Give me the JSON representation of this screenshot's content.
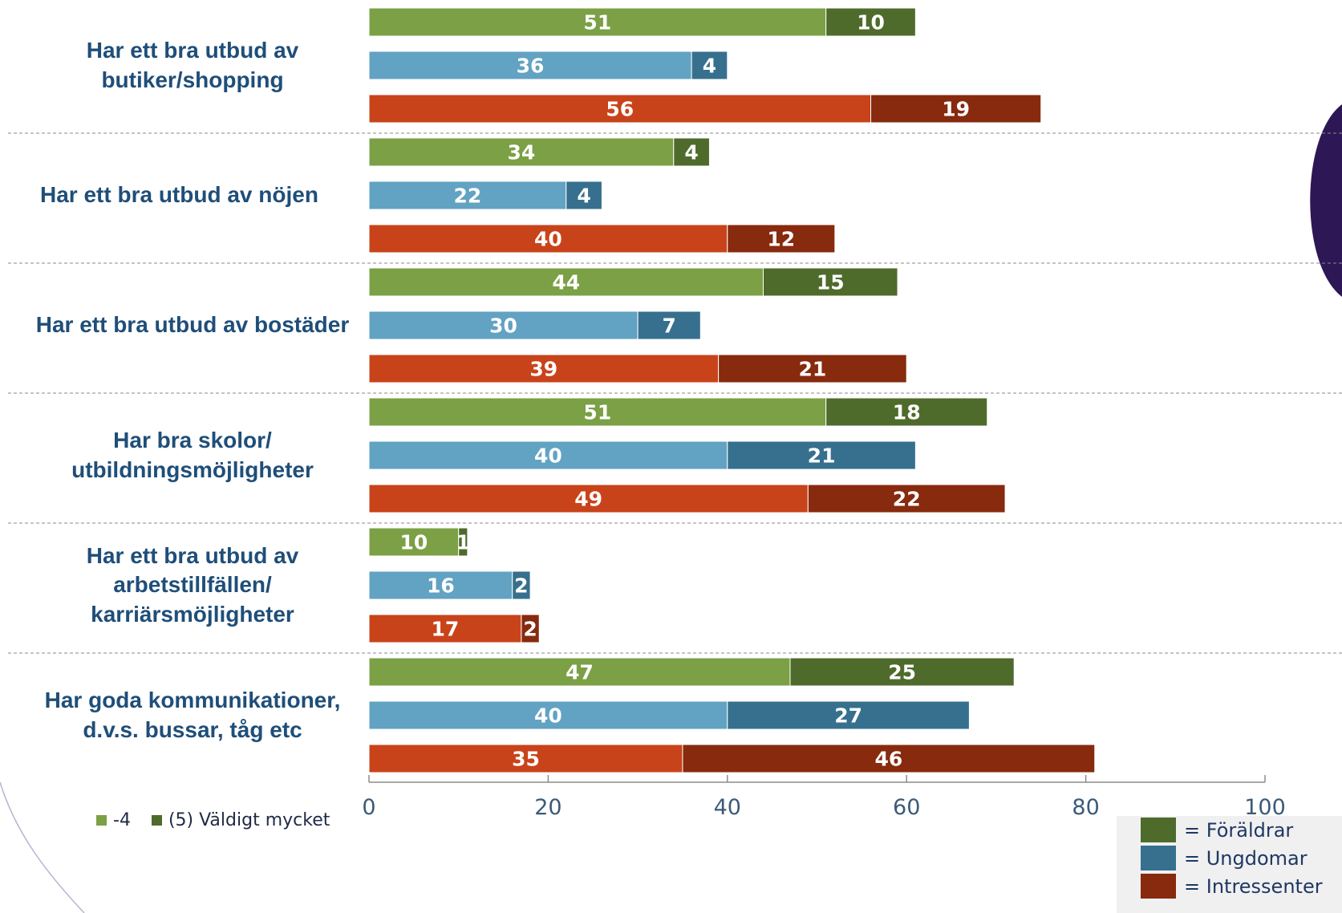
{
  "chart_data": {
    "type": "bar",
    "orientation": "horizontal",
    "stacked": true,
    "categories": [
      "Har ett bra utbud av butiker/shopping",
      "Har ett bra utbud av nöjen",
      "Har ett bra utbud av bostäder",
      "Har bra skolor/ utbildningsmöjligheter",
      "Har ett bra utbud av arbetstillfällen/ karriärsmöjligheter",
      "Har goda kommunikationer, d.v.s. bussar, tåg etc"
    ],
    "groups": [
      {
        "name": "Föräldrar",
        "segments": [
          {
            "series": "-4",
            "values": [
              51,
              34,
              44,
              51,
              10,
              47
            ]
          },
          {
            "series": "(5) Väldigt mycket",
            "values": [
              10,
              4,
              15,
              18,
              1,
              25
            ]
          }
        ]
      },
      {
        "name": "Ungdomar",
        "segments": [
          {
            "series": "-4",
            "values": [
              36,
              22,
              30,
              40,
              16,
              40
            ]
          },
          {
            "series": "(5) Väldigt mycket",
            "values": [
              4,
              4,
              7,
              21,
              2,
              27
            ]
          }
        ]
      },
      {
        "name": "Intressenter",
        "segments": [
          {
            "series": "-4",
            "values": [
              56,
              40,
              39,
              49,
              17,
              35
            ]
          },
          {
            "series": "(5) Väldigt mycket",
            "values": [
              19,
              12,
              21,
              22,
              2,
              46
            ]
          }
        ]
      }
    ],
    "xlim": [
      0,
      100
    ],
    "xticks": [
      0,
      20,
      40,
      60,
      80,
      100
    ],
    "legend": {
      "series": [
        {
          "label": "-4",
          "color": "#7ba045"
        },
        {
          "label": "(5) Väldigt mycket",
          "color": "#4f6b2c"
        }
      ],
      "groups": [
        {
          "label": "= Föräldrar",
          "color": "#4f6b2c"
        },
        {
          "label": "= Ungdomar",
          "color": "#36708e"
        },
        {
          "label": "= Intressenter",
          "color": "#872a0e"
        }
      ]
    },
    "colors": {
      "Föräldrar": [
        "#7ba045",
        "#4f6b2c"
      ],
      "Ungdomar": [
        "#62a2c2",
        "#36708e"
      ],
      "Intressenter": [
        "#c9431a",
        "#872a0e"
      ]
    }
  },
  "labels": {
    "cat0": "Har ett bra utbud av butiker/shopping",
    "cat1": "Har ett bra utbud av nöjen",
    "cat2": "Har ett bra utbud av bostäder",
    "cat3": "Har bra skolor/ utbildningsmöjligheter",
    "cat4": "Har ett bra utbud av arbetstillfällen/ karriärsmöjligheter",
    "cat5": "Har goda kommunikationer, d.v.s. bussar, tåg etc"
  },
  "legend_bottom": {
    "s1": "-4",
    "s2": "(5) Väldigt mycket"
  },
  "legend_box": {
    "g1": "= Föräldrar",
    "g2": "= Ungdomar",
    "g3": "= Intressenter"
  }
}
